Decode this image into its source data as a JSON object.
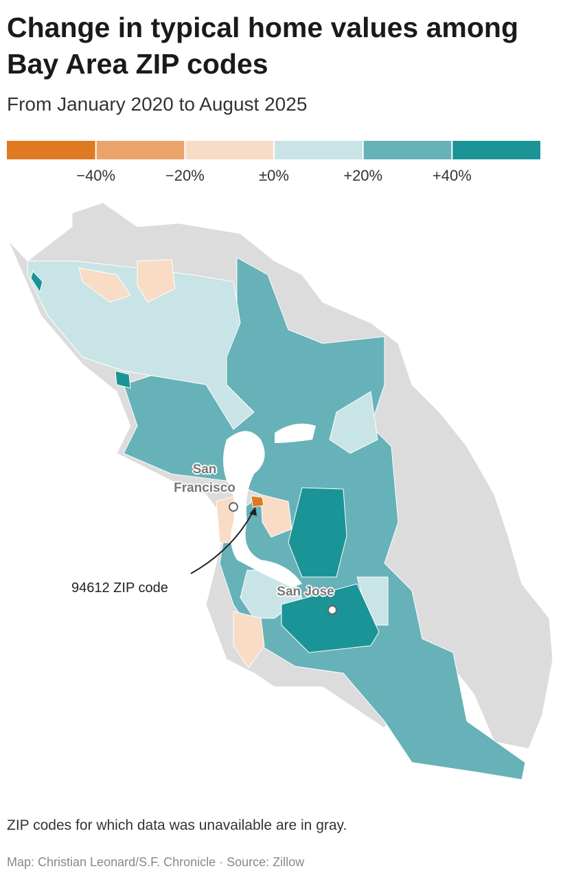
{
  "header": {
    "title": "Change in typical home values among Bay Area ZIP codes",
    "subtitle": "From January 2020 to August 2025"
  },
  "legend": {
    "colors": [
      "#e07a22",
      "#eba46a",
      "#f9dcc6",
      "#c9e4e6",
      "#66b2b8",
      "#1a9496"
    ],
    "labels": [
      "−40%",
      "−20%",
      "±0%",
      "+20%",
      "+40%"
    ]
  },
  "map": {
    "city_labels": [
      "San Francisco",
      "San Jose"
    ],
    "annotation": "94612 ZIP code"
  },
  "footer": {
    "note": "ZIP codes for which data was unavailable are in gray.",
    "credit": "Map: Christian Leonard/S.F. Chronicle · Source: Zillow"
  }
}
